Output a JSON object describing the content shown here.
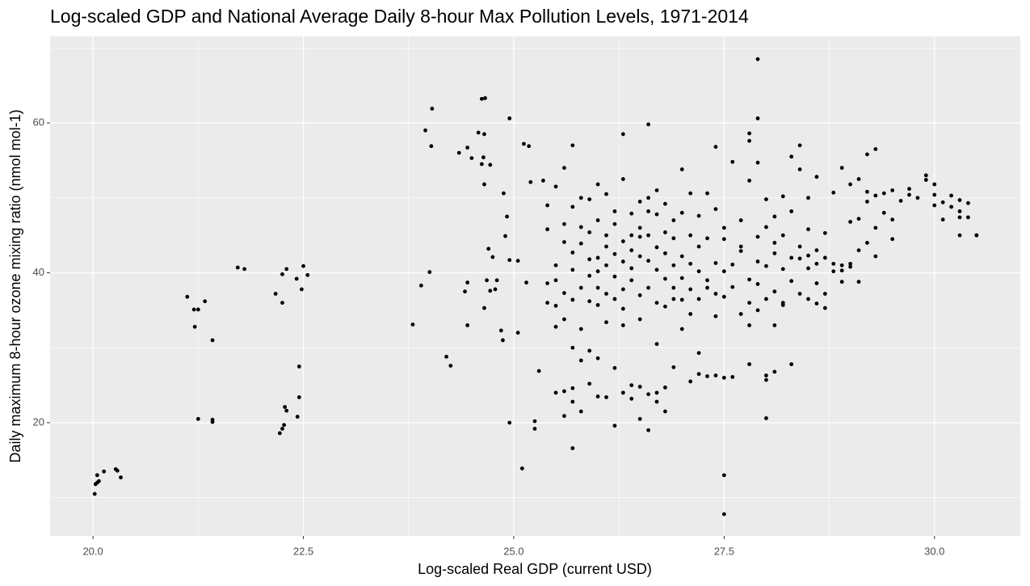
{
  "chart_data": {
    "type": "scatter",
    "title": "Log-scaled GDP and National Average Daily 8-hour Max Pollution Levels, 1971-2014",
    "x_label": "Log-scaled Real GDP (current USD)",
    "y_label": "Daily maximum 8-hour ozone mixing ratio (nmol mol-1)",
    "color": "#000000",
    "grid": true,
    "xlim": [
      19.49,
      31.02
    ],
    "ylim": [
      4.9,
      71.54
    ],
    "xticks": [
      {
        "value": 20,
        "label": "20.0"
      },
      22.5,
      {
        "value": 25,
        "label": "25.0"
      },
      27.5,
      {
        "value": 30,
        "label": "30.0"
      }
    ],
    "yticks": [
      20,
      40,
      60
    ],
    "x": [
      20.02,
      20.03,
      20.05,
      20.07,
      20.05,
      20.13,
      20.27,
      20.29,
      20.33,
      21.12,
      21.2,
      21.25,
      21.33,
      21.21,
      21.42,
      21.25,
      21.42,
      21.42,
      21.72,
      21.8,
      22.17,
      22.25,
      22.3,
      22.25,
      22.42,
      22.48,
      22.5,
      22.55,
      22.45,
      22.45,
      22.43,
      22.28,
      22.3,
      22.27,
      22.25,
      22.22,
      23.8,
      23.9,
      24.0,
      23.95,
      24.03,
      24.02,
      24.2,
      24.25,
      24.35,
      24.45,
      24.5,
      24.42,
      24.45,
      24.45,
      24.58,
      24.65,
      24.62,
      24.66,
      24.64,
      24.62,
      24.72,
      24.65,
      24.7,
      24.75,
      24.72,
      24.78,
      24.65,
      24.68,
      24.8,
      24.85,
      24.87,
      24.88,
      24.92,
      24.9,
      24.95,
      24.95,
      24.95,
      25.05,
      25.05,
      25.1,
      25.12,
      25.18,
      25.2,
      25.15,
      25.25,
      25.25,
      25.3,
      25.35,
      25.4,
      25.4,
      25.4,
      25.4,
      25.5,
      25.5,
      25.5,
      25.5,
      25.5,
      25.5,
      25.6,
      25.6,
      25.6,
      25.6,
      25.6,
      25.6,
      25.6,
      25.7,
      25.7,
      25.7,
      25.7,
      25.7,
      25.7,
      25.7,
      25.7,
      25.7,
      25.8,
      25.8,
      25.8,
      25.8,
      25.8,
      25.8,
      25.8,
      25.9,
      25.9,
      25.9,
      25.9,
      25.9,
      25.9,
      25.9,
      26.0,
      26.0,
      26.0,
      26.0,
      26.0,
      26.0,
      26.0,
      26.0,
      26.1,
      26.1,
      26.1,
      26.1,
      26.1,
      26.1,
      26.1,
      26.2,
      26.2,
      26.2,
      26.2,
      26.2,
      26.2,
      26.2,
      26.3,
      26.3,
      26.3,
      26.3,
      26.3,
      26.3,
      26.3,
      26.3,
      26.4,
      26.4,
      26.4,
      26.4,
      26.4,
      26.4,
      26.4,
      26.5,
      26.5,
      26.5,
      26.5,
      26.5,
      26.5,
      26.5,
      26.5,
      26.6,
      26.6,
      26.6,
      26.6,
      26.6,
      26.6,
      26.6,
      26.6,
      26.7,
      26.7,
      26.7,
      26.7,
      26.7,
      26.7,
      26.7,
      26.7,
      26.8,
      26.8,
      26.8,
      26.8,
      26.8,
      26.8,
      26.8,
      26.9,
      26.9,
      26.9,
      26.9,
      26.9,
      26.9,
      27.0,
      27.0,
      27.0,
      27.0,
      27.0,
      27.0,
      27.1,
      27.1,
      27.1,
      27.1,
      27.1,
      27.1,
      27.2,
      27.2,
      27.2,
      27.2,
      27.2,
      27.2,
      27.3,
      27.3,
      27.3,
      27.3,
      27.3,
      27.4,
      27.4,
      27.4,
      27.4,
      27.4,
      27.4,
      27.5,
      27.5,
      27.5,
      27.5,
      27.5,
      27.5,
      27.5,
      27.6,
      27.6,
      27.6,
      27.6,
      27.7,
      27.7,
      27.7,
      27.7,
      27.8,
      27.8,
      27.8,
      27.8,
      27.8,
      27.8,
      27.8,
      27.9,
      27.9,
      27.9,
      27.9,
      27.9,
      27.9,
      27.9,
      28.0,
      28.0,
      28.0,
      28.0,
      28.0,
      28.0,
      28.0,
      28.1,
      28.1,
      28.1,
      28.1,
      28.1,
      28.1,
      28.2,
      28.2,
      28.2,
      28.2,
      28.2,
      28.3,
      28.3,
      28.3,
      28.3,
      28.3,
      28.4,
      28.4,
      28.4,
      28.4,
      28.4,
      28.5,
      28.5,
      28.5,
      28.5,
      28.5,
      28.6,
      28.6,
      28.6,
      28.6,
      28.6,
      28.7,
      28.7,
      28.7,
      28.7,
      28.8,
      28.8,
      28.8,
      28.9,
      28.9,
      28.9,
      28.9,
      29.0,
      29.0,
      29.0,
      29.0,
      29.1,
      29.1,
      29.1,
      29.1,
      29.2,
      29.2,
      29.2,
      29.2,
      29.3,
      29.3,
      29.3,
      29.3,
      29.4,
      29.4,
      29.5,
      29.5,
      29.5,
      29.6,
      29.7,
      29.7,
      29.8,
      29.9,
      29.9,
      30.0,
      30.0,
      30.0,
      30.1,
      30.1,
      30.2,
      30.2,
      30.3,
      30.3,
      30.3,
      30.3,
      30.4,
      30.4,
      30.5,
      30.5
    ],
    "values": [
      10.5,
      11.8,
      12.0,
      12.2,
      13.0,
      13.5,
      13.8,
      13.6,
      12.7,
      36.8,
      35.1,
      35.1,
      36.2,
      32.8,
      31.0,
      20.5,
      20.4,
      20.1,
      40.7,
      40.5,
      37.2,
      39.8,
      40.5,
      36.0,
      39.2,
      37.8,
      40.9,
      39.7,
      27.5,
      23.4,
      20.8,
      22.1,
      21.6,
      19.7,
      19.2,
      18.6,
      33.1,
      38.3,
      40.1,
      59.0,
      61.9,
      56.9,
      28.8,
      27.6,
      56.0,
      56.7,
      55.3,
      37.5,
      38.7,
      33.0,
      58.7,
      58.5,
      63.2,
      63.3,
      55.4,
      54.5,
      54.4,
      51.8,
      43.2,
      42.1,
      37.6,
      37.8,
      35.3,
      39.0,
      39.0,
      32.3,
      31.0,
      50.6,
      47.5,
      44.9,
      41.7,
      60.6,
      20.0,
      41.6,
      32.0,
      13.9,
      57.2,
      56.9,
      52.1,
      38.7,
      20.2,
      19.2,
      26.9,
      52.3,
      38.6,
      36.0,
      45.8,
      49.0,
      41.0,
      39.0,
      35.6,
      51.5,
      32.8,
      24.0,
      44.1,
      37.3,
      46.5,
      54.0,
      33.8,
      24.2,
      20.9,
      40.4,
      42.7,
      48.8,
      57.0,
      36.4,
      30.0,
      22.8,
      16.6,
      24.6,
      43.9,
      38.0,
      50.0,
      46.1,
      28.3,
      21.5,
      32.5,
      39.6,
      45.4,
      41.8,
      36.2,
      25.2,
      29.6,
      49.8,
      42.0,
      47.0,
      40.2,
      38.0,
      51.8,
      23.5,
      28.6,
      35.7,
      43.5,
      50.5,
      37.2,
      45.0,
      33.4,
      23.4,
      41.0,
      39.5,
      46.5,
      48.2,
      42.5,
      27.3,
      19.6,
      36.5,
      44.2,
      41.5,
      52.5,
      58.5,
      37.8,
      24.0,
      33.0,
      35.2,
      40.6,
      47.9,
      45.0,
      39.0,
      43.0,
      23.2,
      25.0,
      46.0,
      49.5,
      42.2,
      37.0,
      44.8,
      20.5,
      24.8,
      33.8,
      41.6,
      45.0,
      50.0,
      59.8,
      38.0,
      23.8,
      19.0,
      48.2,
      47.8,
      43.4,
      40.4,
      36.0,
      51.0,
      24.0,
      22.8,
      30.5,
      45.4,
      39.2,
      42.6,
      49.2,
      35.5,
      21.5,
      24.7,
      38.0,
      41.0,
      47.0,
      36.5,
      27.4,
      44.6,
      39.3,
      53.8,
      42.2,
      36.4,
      32.5,
      48.0,
      37.8,
      50.6,
      45.0,
      34.5,
      25.5,
      41.2,
      40.2,
      47.6,
      36.5,
      29.3,
      26.5,
      43.5,
      39.0,
      50.6,
      44.6,
      38.0,
      26.2,
      37.2,
      48.5,
      41.3,
      34.2,
      26.3,
      56.8,
      40.2,
      44.5,
      36.8,
      46.0,
      26.0,
      13.0,
      7.8,
      41.1,
      38.1,
      54.8,
      26.1,
      43.5,
      34.5,
      42.9,
      47.0,
      39.1,
      57.6,
      58.6,
      52.3,
      33.0,
      27.8,
      36.0,
      68.5,
      60.6,
      41.5,
      38.5,
      54.7,
      35.0,
      44.8,
      49.8,
      46.1,
      40.9,
      36.5,
      25.7,
      20.6,
      26.3,
      42.6,
      37.5,
      44.0,
      33.0,
      26.8,
      47.5,
      40.5,
      36.0,
      50.2,
      45.0,
      35.7,
      55.5,
      42.0,
      38.9,
      27.8,
      48.2,
      57.0,
      41.9,
      43.5,
      37.2,
      53.8,
      50.0,
      40.6,
      36.5,
      45.8,
      42.3,
      43.0,
      38.6,
      35.9,
      41.2,
      52.8,
      45.3,
      37.2,
      35.3,
      42.0,
      41.2,
      50.7,
      40.2,
      41.0,
      40.3,
      38.8,
      54.0,
      40.8,
      51.8,
      46.8,
      41.2,
      52.5,
      47.2,
      38.8,
      43.0,
      50.8,
      55.8,
      44.0,
      49.5,
      56.5,
      50.3,
      46.0,
      42.2,
      50.6,
      48.0,
      51.0,
      44.5,
      47.1,
      49.6,
      51.2,
      50.4,
      50.0,
      53.0,
      52.4,
      51.8,
      49.0,
      50.4,
      49.4,
      47.1,
      50.3,
      48.8,
      49.7,
      45.0,
      48.2,
      47.4,
      47.4,
      49.3,
      45.0,
      45.0
    ]
  }
}
